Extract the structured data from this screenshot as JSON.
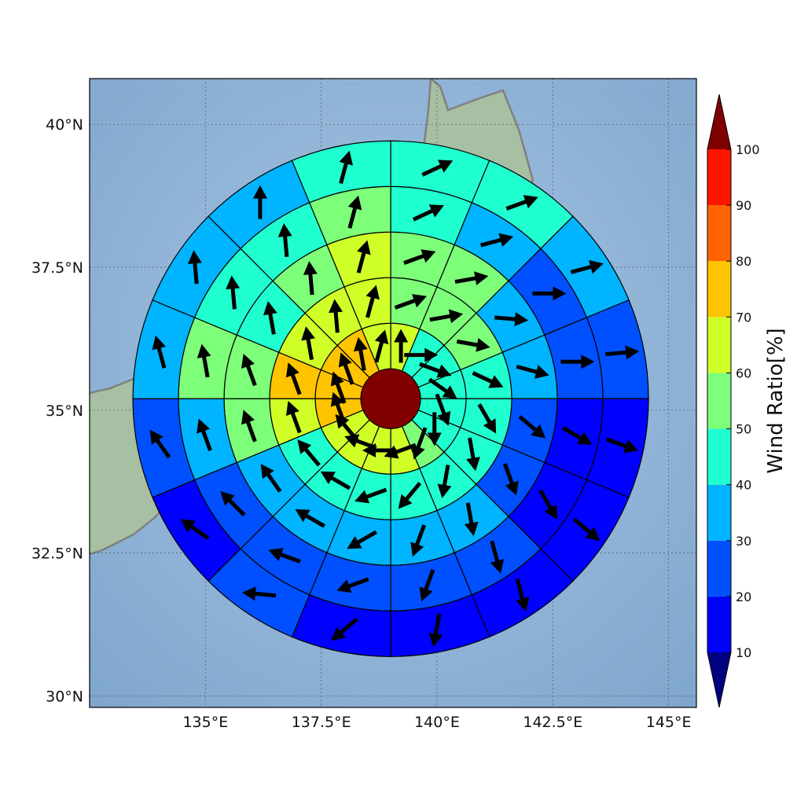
{
  "map": {
    "lon_ticks": [
      "135°E",
      "137.5°E",
      "140°E",
      "142.5°E",
      "145°E"
    ],
    "lat_ticks": [
      "40°N",
      "37.5°N",
      "35°N",
      "32.5°N",
      "30°N"
    ],
    "lon_tick_values": [
      135,
      137.5,
      140,
      142.5,
      145
    ],
    "lat_tick_values": [
      40,
      37.5,
      35,
      32.5,
      30
    ],
    "lon_range": [
      132.5,
      145.6
    ],
    "lat_range": [
      29.8,
      40.8
    ],
    "gridlines": true,
    "center": {
      "lon": 139.0,
      "lat": 35.2
    },
    "center_color": "#800000",
    "ocean_color": "#86add2",
    "land_color": "#a7bfa2",
    "coastline_color": "#808080"
  },
  "colorbar": {
    "label": "Wind Ratio[%]",
    "ticks": [
      "10",
      "20",
      "30",
      "40",
      "50",
      "60",
      "70",
      "80",
      "90",
      "100"
    ],
    "bounds": [
      10,
      20,
      30,
      40,
      50,
      60,
      70,
      80,
      90,
      100
    ],
    "colors": [
      "#0000ff",
      "#0050ff",
      "#00b4ff",
      "#20ffd0",
      "#7dff7a",
      "#d0ff28",
      "#ffc400",
      "#ff6400",
      "#ff1400"
    ],
    "under_color": "#000080",
    "over_color": "#800000"
  },
  "chart_data": {
    "type": "polar_wedge_map",
    "title": "",
    "colorbar_label": "Wind Ratio[%]",
    "rings": 5,
    "sectors": 16,
    "sector_order": "clockwise from north",
    "values_per_ring": [
      [
        60,
        45,
        45,
        45,
        45,
        45,
        55,
        60,
        60,
        60,
        60,
        70,
        70,
        70,
        70,
        60
      ],
      [
        55,
        55,
        55,
        45,
        45,
        45,
        45,
        45,
        45,
        40,
        40,
        60,
        70,
        60,
        60,
        60
      ],
      [
        55,
        55,
        35,
        35,
        25,
        25,
        35,
        35,
        35,
        35,
        30,
        55,
        55,
        45,
        55,
        60
      ],
      [
        45,
        35,
        25,
        25,
        15,
        15,
        25,
        25,
        25,
        25,
        25,
        35,
        50,
        45,
        45,
        55
      ],
      [
        45,
        45,
        35,
        25,
        15,
        15,
        15,
        15,
        15,
        25,
        15,
        25,
        35,
        35,
        35,
        45
      ]
    ],
    "wind_direction_deg": [
      [
        0,
        90,
        110,
        125,
        160,
        180,
        200,
        250,
        270,
        290,
        320,
        340,
        340,
        340,
        350,
        15
      ],
      [
        70,
        80,
        100,
        115,
        150,
        170,
        190,
        220,
        250,
        300,
        320,
        340,
        340,
        350,
        355,
        15
      ],
      [
        70,
        80,
        95,
        105,
        130,
        160,
        170,
        200,
        240,
        300,
        325,
        340,
        340,
        350,
        355,
        15
      ],
      [
        65,
        75,
        90,
        90,
        120,
        150,
        165,
        200,
        250,
        290,
        315,
        340,
        350,
        355,
        355,
        15
      ],
      [
        65,
        70,
        75,
        85,
        110,
        130,
        165,
        190,
        230,
        275,
        305,
        325,
        345,
        355,
        0,
        15
      ]
    ]
  }
}
